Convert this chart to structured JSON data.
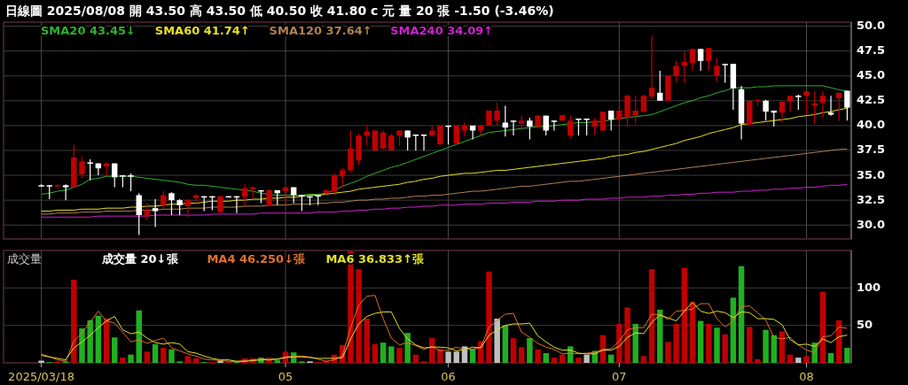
{
  "chart_data": [
    {
      "type": "candlestick",
      "title": "日線圖 2025/08/08 開 43.50 高 43.50 低 40.50 收 41.80 c 元 量 20 張 -1.50 (-3.46%)",
      "categories": [
        "2025/03/18",
        null,
        null,
        null,
        null,
        null,
        null,
        null,
        null,
        null,
        null,
        null,
        null,
        null,
        null,
        null,
        null,
        null,
        null,
        null,
        null,
        null,
        null,
        null,
        null,
        null,
        null,
        null,
        null,
        null,
        "05",
        null,
        null,
        null,
        null,
        null,
        null,
        null,
        null,
        null,
        null,
        null,
        null,
        null,
        null,
        null,
        null,
        null,
        null,
        null,
        "06",
        null,
        null,
        null,
        null,
        null,
        null,
        null,
        null,
        null,
        null,
        null,
        null,
        null,
        null,
        null,
        null,
        null,
        null,
        null,
        null,
        "07",
        null,
        null,
        null,
        null,
        null,
        null,
        null,
        null,
        null,
        null,
        null,
        null,
        null,
        null,
        null,
        null,
        null,
        null,
        null,
        null,
        null,
        null,
        "08",
        null,
        null,
        null,
        null,
        null
      ],
      "ohlc": [
        [
          34.0,
          34.1,
          33.9,
          33.95
        ],
        [
          34.0,
          34.0,
          32.6,
          33.9
        ],
        [
          33.95,
          34.1,
          33.9,
          34.0
        ],
        [
          34.0,
          34.1,
          32.5,
          33.8
        ],
        [
          33.8,
          38.1,
          33.8,
          36.8
        ],
        [
          35.1,
          36.9,
          34.7,
          36.4
        ],
        [
          36.3,
          36.6,
          34.5,
          36.2
        ],
        [
          36.2,
          36.2,
          35.0,
          35.7
        ],
        [
          35.9,
          36.3,
          35.0,
          36.2
        ],
        [
          36.2,
          36.2,
          33.8,
          34.8
        ],
        [
          35.0,
          35.0,
          33.8,
          34.9
        ],
        [
          35.0,
          35.2,
          33.4,
          34.9
        ],
        [
          33.0,
          33.2,
          29.0,
          31.0
        ],
        [
          30.9,
          32.2,
          30.5,
          31.5
        ],
        [
          31.7,
          32.6,
          29.8,
          31.4
        ],
        [
          32.0,
          33.4,
          31.6,
          33.0
        ],
        [
          33.2,
          33.3,
          31.0,
          32.5
        ],
        [
          32.5,
          32.6,
          31.0,
          32.0
        ],
        [
          31.9,
          32.6,
          30.8,
          32.5
        ],
        [
          32.7,
          33.1,
          32.1,
          33.0
        ],
        [
          32.9,
          32.9,
          31.4,
          32.85
        ],
        [
          32.9,
          32.9,
          31.5,
          32.8
        ],
        [
          31.3,
          32.9,
          31.2,
          32.9
        ],
        [
          32.9,
          32.9,
          32.8,
          32.8
        ],
        [
          32.9,
          32.9,
          31.2,
          32.8
        ],
        [
          32.85,
          34.1,
          32.0,
          33.7
        ],
        [
          33.6,
          33.9,
          32.6,
          33.8
        ],
        [
          33.5,
          33.5,
          32.2,
          33.45
        ],
        [
          31.9,
          33.6,
          31.9,
          33.5
        ],
        [
          33.5,
          33.5,
          32.0,
          33.2
        ],
        [
          33.4,
          33.8,
          32.0,
          33.8
        ],
        [
          33.8,
          33.8,
          32.2,
          33.0
        ],
        [
          33.0,
          33.05,
          31.4,
          32.9
        ],
        [
          32.9,
          32.9,
          32.0,
          32.85
        ],
        [
          33.0,
          33.0,
          32.0,
          32.9
        ],
        [
          33.2,
          33.6,
          33.0,
          33.5
        ],
        [
          33.4,
          35.2,
          33.0,
          35.0
        ],
        [
          34.9,
          35.75,
          33.8,
          35.5
        ],
        [
          35.5,
          39.5,
          35.3,
          37.7
        ],
        [
          36.5,
          39.2,
          36.0,
          39.0
        ],
        [
          39.0,
          40.0,
          38.0,
          39.4
        ],
        [
          37.5,
          39.6,
          37.4,
          39.5
        ],
        [
          37.7,
          39.5,
          37.6,
          39.3
        ],
        [
          37.5,
          39.2,
          37.5,
          39.0
        ],
        [
          39.0,
          39.5,
          38.0,
          39.5
        ],
        [
          39.5,
          39.5,
          37.5,
          38.8
        ],
        [
          39.1,
          39.1,
          37.5,
          39.0
        ],
        [
          39.1,
          39.1,
          37.5,
          39.0
        ],
        [
          39.0,
          40.0,
          38.9,
          39.5
        ],
        [
          38.1,
          40.0,
          38.1,
          40.0
        ],
        [
          40.0,
          40.0,
          38.1,
          39.95
        ],
        [
          38.2,
          40.0,
          38.2,
          40.0
        ],
        [
          39.5,
          40.3,
          38.9,
          40.0
        ],
        [
          40.0,
          40.0,
          38.6,
          39.5
        ],
        [
          39.5,
          40.0,
          39.0,
          40.0
        ],
        [
          40.0,
          41.5,
          40.0,
          41.5
        ],
        [
          40.5,
          42.3,
          40.0,
          41.5
        ],
        [
          40.3,
          42.0,
          38.9,
          39.8
        ],
        [
          40.5,
          40.5,
          39.0,
          40.4
        ],
        [
          40.2,
          41.0,
          39.5,
          40.5
        ],
        [
          40.5,
          40.8,
          38.6,
          39.9
        ],
        [
          39.9,
          41.0,
          39.7,
          41.0
        ],
        [
          41.0,
          41.0,
          39.0,
          39.5
        ],
        [
          40.5,
          40.5,
          39.5,
          40.45
        ],
        [
          40.5,
          41.1,
          40.5,
          41.05
        ],
        [
          39.0,
          41.0,
          38.7,
          40.5
        ],
        [
          40.7,
          40.7,
          39.0,
          40.65
        ],
        [
          40.7,
          40.7,
          39.0,
          40.65
        ],
        [
          39.9,
          40.8,
          39.0,
          40.5
        ],
        [
          39.5,
          41.4,
          39.5,
          41.4
        ],
        [
          41.5,
          41.5,
          39.5,
          40.6
        ],
        [
          40.6,
          41.6,
          40.0,
          41.5
        ],
        [
          40.8,
          43.1,
          39.9,
          43.0
        ],
        [
          41.0,
          43.0,
          40.2,
          41.5
        ],
        [
          41.4,
          43.1,
          41.3,
          43.0
        ],
        [
          42.9,
          49.0,
          42.7,
          43.8
        ],
        [
          43.3,
          45.5,
          42.5,
          42.5
        ],
        [
          42.5,
          45.0,
          42.5,
          45.0
        ],
        [
          45.0,
          46.5,
          44.4,
          46.0
        ],
        [
          46.0,
          47.4,
          44.3,
          46.4
        ],
        [
          46.3,
          47.7,
          45.5,
          47.7
        ],
        [
          47.7,
          47.7,
          45.5,
          46.5
        ],
        [
          46.5,
          47.8,
          45.5,
          47.8
        ],
        [
          45.0,
          46.8,
          44.4,
          46.0
        ],
        [
          46.2,
          46.2,
          44.3,
          46.15
        ],
        [
          46.2,
          46.2,
          41.6,
          43.75
        ],
        [
          43.65,
          44.0,
          38.6,
          40.2
        ],
        [
          40.1,
          42.5,
          40.0,
          42.5
        ],
        [
          42.5,
          42.6,
          42.0,
          42.6
        ],
        [
          42.5,
          42.6,
          40.5,
          41.4
        ],
        [
          41.5,
          41.5,
          39.9,
          41.3
        ],
        [
          41.3,
          42.4,
          40.3,
          42.4
        ],
        [
          42.4,
          43.0,
          41.4,
          43.0
        ],
        [
          43.0,
          43.1,
          41.6,
          42.95
        ],
        [
          43.0,
          43.45,
          41.1,
          43.45
        ],
        [
          42.0,
          43.45,
          40.2,
          42.25
        ],
        [
          42.3,
          43.4,
          40.8,
          43.0
        ],
        [
          41.3,
          43.0,
          41.0,
          41.1
        ],
        [
          42.75,
          43.3,
          40.45,
          43.3
        ],
        [
          43.5,
          43.5,
          40.5,
          41.8
        ]
      ],
      "colors": [
        "#ffffff",
        "#ffffff",
        "#c00000",
        "#ffffff",
        "#c00000",
        "#c00000",
        "#ffffff",
        "#ffffff",
        "#c00000",
        "#ffffff",
        "#ffffff",
        "#ffffff",
        "#ffffff",
        "#c00000",
        "#ffffff",
        "#c00000",
        "#ffffff",
        "#ffffff",
        "#c00000",
        "#c00000",
        "#ffffff",
        "#ffffff",
        "#c00000",
        "#ffffff",
        "#ffffff",
        "#c00000",
        "#c00000",
        "#ffffff",
        "#c00000",
        "#ffffff",
        "#c00000",
        "#ffffff",
        "#ffffff",
        "#ffffff",
        "#ffffff",
        "#c00000",
        "#c00000",
        "#c00000",
        "#c00000",
        "#c00000",
        "#c00000",
        "#c00000",
        "#c00000",
        "#c00000",
        "#c00000",
        "#ffffff",
        "#ffffff",
        "#ffffff",
        "#c00000",
        "#c00000",
        "#ffffff",
        "#c00000",
        "#c00000",
        "#ffffff",
        "#c00000",
        "#c00000",
        "#c00000",
        "#ffffff",
        "#ffffff",
        "#c00000",
        "#ffffff",
        "#c00000",
        "#ffffff",
        "#ffffff",
        "#c00000",
        "#c00000",
        "#ffffff",
        "#ffffff",
        "#c00000",
        "#c00000",
        "#ffffff",
        "#c00000",
        "#c00000",
        "#c00000",
        "#c00000",
        "#c00000",
        "#ffffff",
        "#c00000",
        "#c00000",
        "#c00000",
        "#c00000",
        "#ffffff",
        "#c00000",
        "#c00000",
        "#ffffff",
        "#ffffff",
        "#ffffff",
        "#c00000",
        "#c00000",
        "#ffffff",
        "#ffffff",
        "#c00000",
        "#c00000",
        "#ffffff",
        "#c00000",
        "#c00000",
        "#c00000",
        "#ffffff",
        "#c00000",
        "#ffffff"
      ],
      "series": [
        {
          "name": "SMA20 43.45↓",
          "type": "line",
          "color": "#30b030",
          "values": [
            33.1,
            33.2,
            33.4,
            33.5,
            33.8,
            34.1,
            34.6,
            34.7,
            34.9,
            34.9,
            34.9,
            34.9,
            34.8,
            34.7,
            34.6,
            34.5,
            34.4,
            34.3,
            34.1,
            34.0,
            34.0,
            33.9,
            33.8,
            33.7,
            33.6,
            33.5,
            33.4,
            33.2,
            33.1,
            33.0,
            33.0,
            33.0,
            33.0,
            33.1,
            33.1,
            33.2,
            33.5,
            33.9,
            34.2,
            34.5,
            34.9,
            35.2,
            35.5,
            35.8,
            36.0,
            36.3,
            36.6,
            36.9,
            37.2,
            37.5,
            37.8,
            38.1,
            38.4,
            38.7,
            39.0,
            39.3,
            39.4,
            39.5,
            39.6,
            39.7,
            39.8,
            39.9,
            39.9,
            40.0,
            40.1,
            40.2,
            40.3,
            40.3,
            40.4,
            40.4,
            40.6,
            40.7,
            40.8,
            40.9,
            41.0,
            41.1,
            41.4,
            41.7,
            42.0,
            42.3,
            42.5,
            42.8,
            43.0,
            43.3,
            43.5,
            43.8,
            43.8,
            43.8,
            43.9,
            43.9,
            44.0,
            44.0,
            44.0,
            44.0,
            44.0,
            44.0,
            44.0,
            43.8,
            43.6,
            43.45
          ]
        },
        {
          "name": "SMA60 41.74↑",
          "type": "line",
          "color": "#e8e020",
          "values": [
            31.4,
            31.4,
            31.5,
            31.5,
            31.5,
            31.6,
            31.6,
            31.6,
            31.7,
            31.7,
            31.7,
            31.8,
            31.8,
            31.9,
            31.9,
            32.0,
            32.1,
            32.1,
            32.2,
            32.2,
            32.3,
            32.4,
            32.4,
            32.4,
            32.5,
            32.5,
            32.6,
            32.6,
            32.7,
            32.7,
            32.8,
            32.8,
            32.9,
            33.0,
            33.0,
            33.1,
            33.2,
            33.3,
            33.4,
            33.6,
            33.7,
            33.8,
            33.9,
            34.0,
            34.1,
            34.3,
            34.4,
            34.6,
            34.7,
            34.9,
            35.0,
            35.1,
            35.2,
            35.2,
            35.3,
            35.4,
            35.5,
            35.5,
            35.6,
            35.7,
            35.8,
            35.9,
            36.0,
            36.1,
            36.2,
            36.3,
            36.4,
            36.5,
            36.6,
            36.7,
            36.9,
            37.0,
            37.1,
            37.3,
            37.4,
            37.6,
            37.8,
            38.0,
            38.2,
            38.5,
            38.7,
            38.9,
            39.2,
            39.4,
            39.6,
            39.8,
            40.1,
            40.2,
            40.3,
            40.4,
            40.5,
            40.6,
            40.7,
            40.9,
            41.0,
            41.1,
            41.3,
            41.4,
            41.6,
            41.74
          ]
        },
        {
          "name": "SMA120 37.64↑",
          "type": "line",
          "color": "#b08050",
          "values": [
            31.1,
            31.1,
            31.2,
            31.2,
            31.2,
            31.3,
            31.3,
            31.3,
            31.4,
            31.4,
            31.4,
            31.4,
            31.5,
            31.5,
            31.5,
            31.6,
            31.6,
            31.6,
            31.7,
            31.7,
            31.7,
            31.8,
            31.8,
            31.8,
            31.8,
            31.9,
            31.9,
            31.9,
            32.0,
            32.0,
            32.0,
            32.1,
            32.1,
            32.1,
            32.2,
            32.2,
            32.3,
            32.3,
            32.4,
            32.5,
            32.5,
            32.6,
            32.6,
            32.7,
            32.7,
            32.8,
            32.9,
            32.9,
            33.0,
            33.0,
            33.1,
            33.2,
            33.3,
            33.4,
            33.4,
            33.5,
            33.6,
            33.7,
            33.8,
            33.9,
            33.9,
            34.0,
            34.1,
            34.2,
            34.3,
            34.4,
            34.4,
            34.5,
            34.6,
            34.7,
            34.8,
            34.9,
            35.0,
            35.1,
            35.2,
            35.3,
            35.4,
            35.5,
            35.6,
            35.7,
            35.8,
            35.9,
            36.0,
            36.1,
            36.2,
            36.3,
            36.4,
            36.5,
            36.6,
            36.7,
            36.8,
            36.9,
            37.0,
            37.1,
            37.2,
            37.3,
            37.4,
            37.5,
            37.6,
            37.64
          ]
        },
        {
          "name": "SMA240 34.09↑",
          "type": "line",
          "color": "#d020d0",
          "values": [
            30.8,
            30.8,
            30.8,
            30.8,
            30.8,
            30.8,
            30.8,
            30.9,
            30.9,
            30.9,
            30.9,
            30.9,
            30.9,
            30.9,
            31.0,
            31.0,
            31.0,
            31.0,
            31.0,
            31.0,
            31.0,
            31.1,
            31.1,
            31.1,
            31.1,
            31.1,
            31.1,
            31.2,
            31.2,
            31.2,
            31.2,
            31.2,
            31.2,
            31.2,
            31.3,
            31.3,
            31.3,
            31.4,
            31.4,
            31.5,
            31.5,
            31.6,
            31.6,
            31.7,
            31.7,
            31.8,
            31.8,
            31.9,
            31.9,
            32.0,
            32.0,
            32.0,
            32.1,
            32.1,
            32.1,
            32.2,
            32.2,
            32.2,
            32.3,
            32.3,
            32.3,
            32.4,
            32.4,
            32.4,
            32.5,
            32.5,
            32.5,
            32.6,
            32.6,
            32.6,
            32.7,
            32.7,
            32.8,
            32.8,
            32.8,
            32.9,
            32.9,
            33.0,
            33.0,
            33.1,
            33.1,
            33.2,
            33.2,
            33.3,
            33.3,
            33.3,
            33.4,
            33.4,
            33.5,
            33.5,
            33.6,
            33.6,
            33.7,
            33.7,
            33.8,
            33.8,
            33.9,
            34.0,
            34.0,
            34.09
          ]
        }
      ],
      "ylim": [
        28.6,
        50.4
      ],
      "yticks": [
        {
          "value": 30,
          "label": "30.0"
        },
        {
          "value": 32.5,
          "label": "32.5"
        },
        {
          "value": 35,
          "label": "35.0"
        },
        {
          "value": 37.5,
          "label": "37.5"
        },
        {
          "value": 40,
          "label": "40.0"
        },
        {
          "value": 42.5,
          "label": "42.5"
        },
        {
          "value": 45,
          "label": "45.0"
        },
        {
          "value": 47.5,
          "label": "47.5"
        },
        {
          "value": 50,
          "label": "50.0"
        }
      ],
      "grid": true,
      "legend": "top left",
      "tick_labels": "y"
    },
    {
      "type": "bar",
      "title": "成交量",
      "categories": [
        "2025/03/18",
        null,
        null,
        null,
        null,
        null,
        null,
        null,
        null,
        null,
        null,
        null,
        null,
        null,
        null,
        null,
        null,
        null,
        null,
        null,
        null,
        null,
        null,
        null,
        null,
        null,
        null,
        null,
        null,
        null,
        "05",
        null,
        null,
        null,
        null,
        null,
        null,
        null,
        null,
        null,
        null,
        null,
        null,
        null,
        null,
        null,
        null,
        null,
        null,
        null,
        "06",
        null,
        null,
        null,
        null,
        null,
        null,
        null,
        null,
        null,
        null,
        null,
        null,
        null,
        null,
        null,
        null,
        null,
        null,
        null,
        null,
        "07",
        null,
        null,
        null,
        null,
        null,
        null,
        null,
        null,
        null,
        null,
        null,
        null,
        null,
        null,
        null,
        null,
        null,
        null,
        null,
        null,
        null,
        null,
        "08",
        null,
        null,
        null,
        null,
        null
      ],
      "series": [
        {
          "name": "成交量 20↓張",
          "values": [
            3,
            1,
            2,
            2,
            111,
            46,
            57,
            63,
            59,
            34,
            7,
            11,
            70,
            15,
            25,
            20,
            18,
            2,
            9,
            6,
            1,
            1,
            3,
            1,
            1,
            6,
            6,
            7,
            4,
            4,
            15,
            14,
            2,
            2,
            1,
            3,
            11,
            24,
            149,
            125,
            59,
            25,
            27,
            22,
            20,
            40,
            11,
            2,
            33,
            19,
            15,
            15,
            22,
            19,
            29,
            122,
            59,
            50,
            33,
            21,
            33,
            18,
            13,
            7,
            11,
            22,
            7,
            11,
            16,
            37,
            11,
            52,
            74,
            52,
            9,
            125,
            71,
            28,
            52,
            127,
            81,
            56,
            52,
            47,
            38,
            87,
            129,
            48,
            5,
            44,
            37,
            42,
            11,
            7,
            9,
            27,
            95,
            13,
            57,
            20
          ],
          "colors": [
            "#c0c0c0",
            "#20b020",
            "#c00000",
            "#20b020",
            "#c00000",
            "#20b020",
            "#20b020",
            "#20b020",
            "#c00000",
            "#20b020",
            "#c00000",
            "#20b020",
            "#20b020",
            "#c00000",
            "#20b020",
            "#c00000",
            "#20b020",
            "#20b020",
            "#c00000",
            "#c00000",
            "#20b020",
            "#c00000",
            "#c0c0c0",
            "#c00000",
            "#20b020",
            "#c00000",
            "#c00000",
            "#20b020",
            "#c00000",
            "#20b020",
            "#c00000",
            "#20b020",
            "#20b020",
            "#c0c0c0",
            "#c00000",
            "#c00000",
            "#c00000",
            "#c00000",
            "#c00000",
            "#c00000",
            "#c00000",
            "#c00000",
            "#20b020",
            "#20b020",
            "#c00000",
            "#20b020",
            "#c00000",
            "#c00000",
            "#c00000",
            "#c00000",
            "#c0c0c0",
            "#c0c0c0",
            "#c0c0c0",
            "#20b020",
            "#c00000",
            "#c00000",
            "#c0c0c0",
            "#20b020",
            "#c00000",
            "#c00000",
            "#20b020",
            "#c00000",
            "#20b020",
            "#c00000",
            "#c00000",
            "#20b020",
            "#c00000",
            "#c0c0c0",
            "#20b020",
            "#c00000",
            "#20b020",
            "#c00000",
            "#c00000",
            "#20b020",
            "#c00000",
            "#c00000",
            "#20b020",
            "#c00000",
            "#c00000",
            "#c00000",
            "#c00000",
            "#20b020",
            "#c00000",
            "#20b020",
            "#c00000",
            "#20b020",
            "#20b020",
            "#c00000",
            "#c00000",
            "#20b020",
            "#20b020",
            "#c00000",
            "#c00000",
            "#c0c0c0",
            "#c00000",
            "#20b020",
            "#c00000",
            "#20b020",
            "#c00000",
            "#20b020"
          ]
        },
        {
          "name": "MA4 46.250↓張",
          "type": "line",
          "color": "#e07030",
          "values": [
            12,
            8,
            4,
            2,
            29,
            40,
            54,
            69,
            56,
            53,
            41,
            28,
            31,
            26,
            30,
            33,
            20,
            16,
            12,
            9,
            5,
            4,
            3,
            2,
            2,
            3,
            4,
            5,
            6,
            5,
            8,
            9,
            9,
            8,
            5,
            2,
            4,
            10,
            47,
            77,
            89,
            90,
            59,
            33,
            24,
            27,
            23,
            18,
            22,
            16,
            17,
            21,
            18,
            18,
            21,
            48,
            57,
            65,
            66,
            41,
            34,
            26,
            21,
            18,
            12,
            13,
            12,
            13,
            14,
            18,
            19,
            29,
            44,
            47,
            47,
            65,
            64,
            58,
            69,
            70,
            72,
            79,
            79,
            59,
            48,
            56,
            75,
            76,
            67,
            57,
            34,
            32,
            34,
            24,
            17,
            14,
            35,
            36,
            48,
            46
          ]
        },
        {
          "name": "MA6 36.833↑張",
          "type": "line",
          "color": "#e0e030",
          "values": [
            10,
            8,
            6,
            4,
            20,
            28,
            37,
            47,
            56,
            62,
            44,
            39,
            41,
            33,
            27,
            25,
            27,
            25,
            15,
            13,
            9,
            6,
            4,
            4,
            2,
            2,
            3,
            4,
            4,
            5,
            7,
            8,
            8,
            7,
            6,
            6,
            6,
            7,
            32,
            52,
            62,
            66,
            68,
            68,
            46,
            32,
            24,
            20,
            21,
            21,
            20,
            16,
            18,
            21,
            20,
            37,
            44,
            50,
            52,
            52,
            53,
            36,
            28,
            21,
            17,
            17,
            13,
            12,
            12,
            17,
            17,
            22,
            34,
            40,
            39,
            54,
            64,
            60,
            56,
            69,
            81,
            69,
            66,
            69,
            67,
            60,
            68,
            67,
            59,
            59,
            58,
            51,
            31,
            24,
            25,
            22,
            32,
            27,
            35,
            37
          ]
        }
      ],
      "ylim": [
        0,
        150
      ],
      "yticks": [
        50,
        100
      ],
      "grid": true,
      "legend": "top left"
    }
  ]
}
